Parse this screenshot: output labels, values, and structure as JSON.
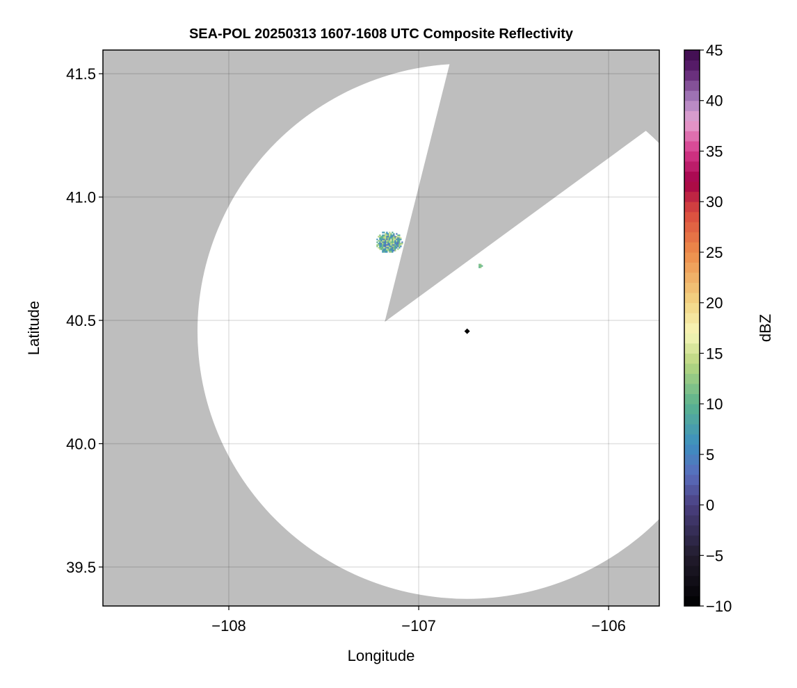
{
  "chart_data": {
    "type": "heatmap",
    "title": "SEA-POL 20250313 1607-1608 UTC Composite Reflectivity",
    "xlabel": "Longitude",
    "ylabel": "Latitude",
    "xlim": [
      -108.663,
      -105.733
    ],
    "ylim": [
      39.342,
      41.596
    ],
    "xticks": [
      -108,
      -107,
      -106
    ],
    "xtick_labels": [
      "−108",
      "−107",
      "−106"
    ],
    "yticks": [
      39.5,
      40.0,
      40.5,
      41.0,
      41.5
    ],
    "ytick_labels": [
      "39.5",
      "40.0",
      "40.5",
      "41.0",
      "41.5"
    ],
    "grid": true,
    "background_no_data_color": "#bebebe",
    "radar": {
      "lon": -106.745,
      "lat": 40.456,
      "range_lon_deg": 1.42,
      "range_lat_deg": 1.085
    },
    "blocked_sector": {
      "apex": [
        -107.179,
        40.494
      ],
      "edge1": [
        -106.842,
        41.525
      ],
      "edge2": [
        -106.062,
        41.123
      ]
    },
    "echoes": [
      {
        "lon": -107.16,
        "lat": 40.82,
        "radius_lon": 0.07,
        "radius_lat": 0.045,
        "dbz_range": [
          3,
          16
        ]
      },
      {
        "lon": -106.68,
        "lat": 40.725,
        "radius_lon": 0.012,
        "radius_lat": 0.01,
        "dbz_range": [
          8,
          13
        ]
      },
      {
        "lon": -106.682,
        "lat": 40.68,
        "radius_lon": 0.004,
        "radius_lat": 0.004,
        "dbz_range": [
          5,
          8
        ]
      }
    ],
    "colorbar": {
      "label": "dBZ",
      "range": [
        -10,
        45
      ],
      "ticks": [
        -10,
        -5,
        0,
        5,
        10,
        15,
        20,
        25,
        30,
        35,
        40,
        45
      ],
      "tick_labels": [
        "−10",
        "−5",
        "0",
        "5",
        "10",
        "15",
        "20",
        "25",
        "30",
        "35",
        "40",
        "45"
      ],
      "step": 1,
      "color_stops": [
        [
          -10,
          "#000000"
        ],
        [
          -5,
          "#221c2e"
        ],
        [
          0,
          "#4a3f80"
        ],
        [
          3,
          "#5a6cbc"
        ],
        [
          6,
          "#3d8fc0"
        ],
        [
          10,
          "#5bb38e"
        ],
        [
          14,
          "#b8d680"
        ],
        [
          17,
          "#f8f6b8"
        ],
        [
          20,
          "#f2d585"
        ],
        [
          25,
          "#ee8c4a"
        ],
        [
          29,
          "#d94a3e"
        ],
        [
          32,
          "#a30048"
        ],
        [
          35,
          "#d5398b"
        ],
        [
          38,
          "#e6a4d2"
        ],
        [
          40,
          "#ab82c0"
        ],
        [
          43,
          "#5d2070"
        ],
        [
          45,
          "#3c0a4a"
        ]
      ]
    }
  }
}
